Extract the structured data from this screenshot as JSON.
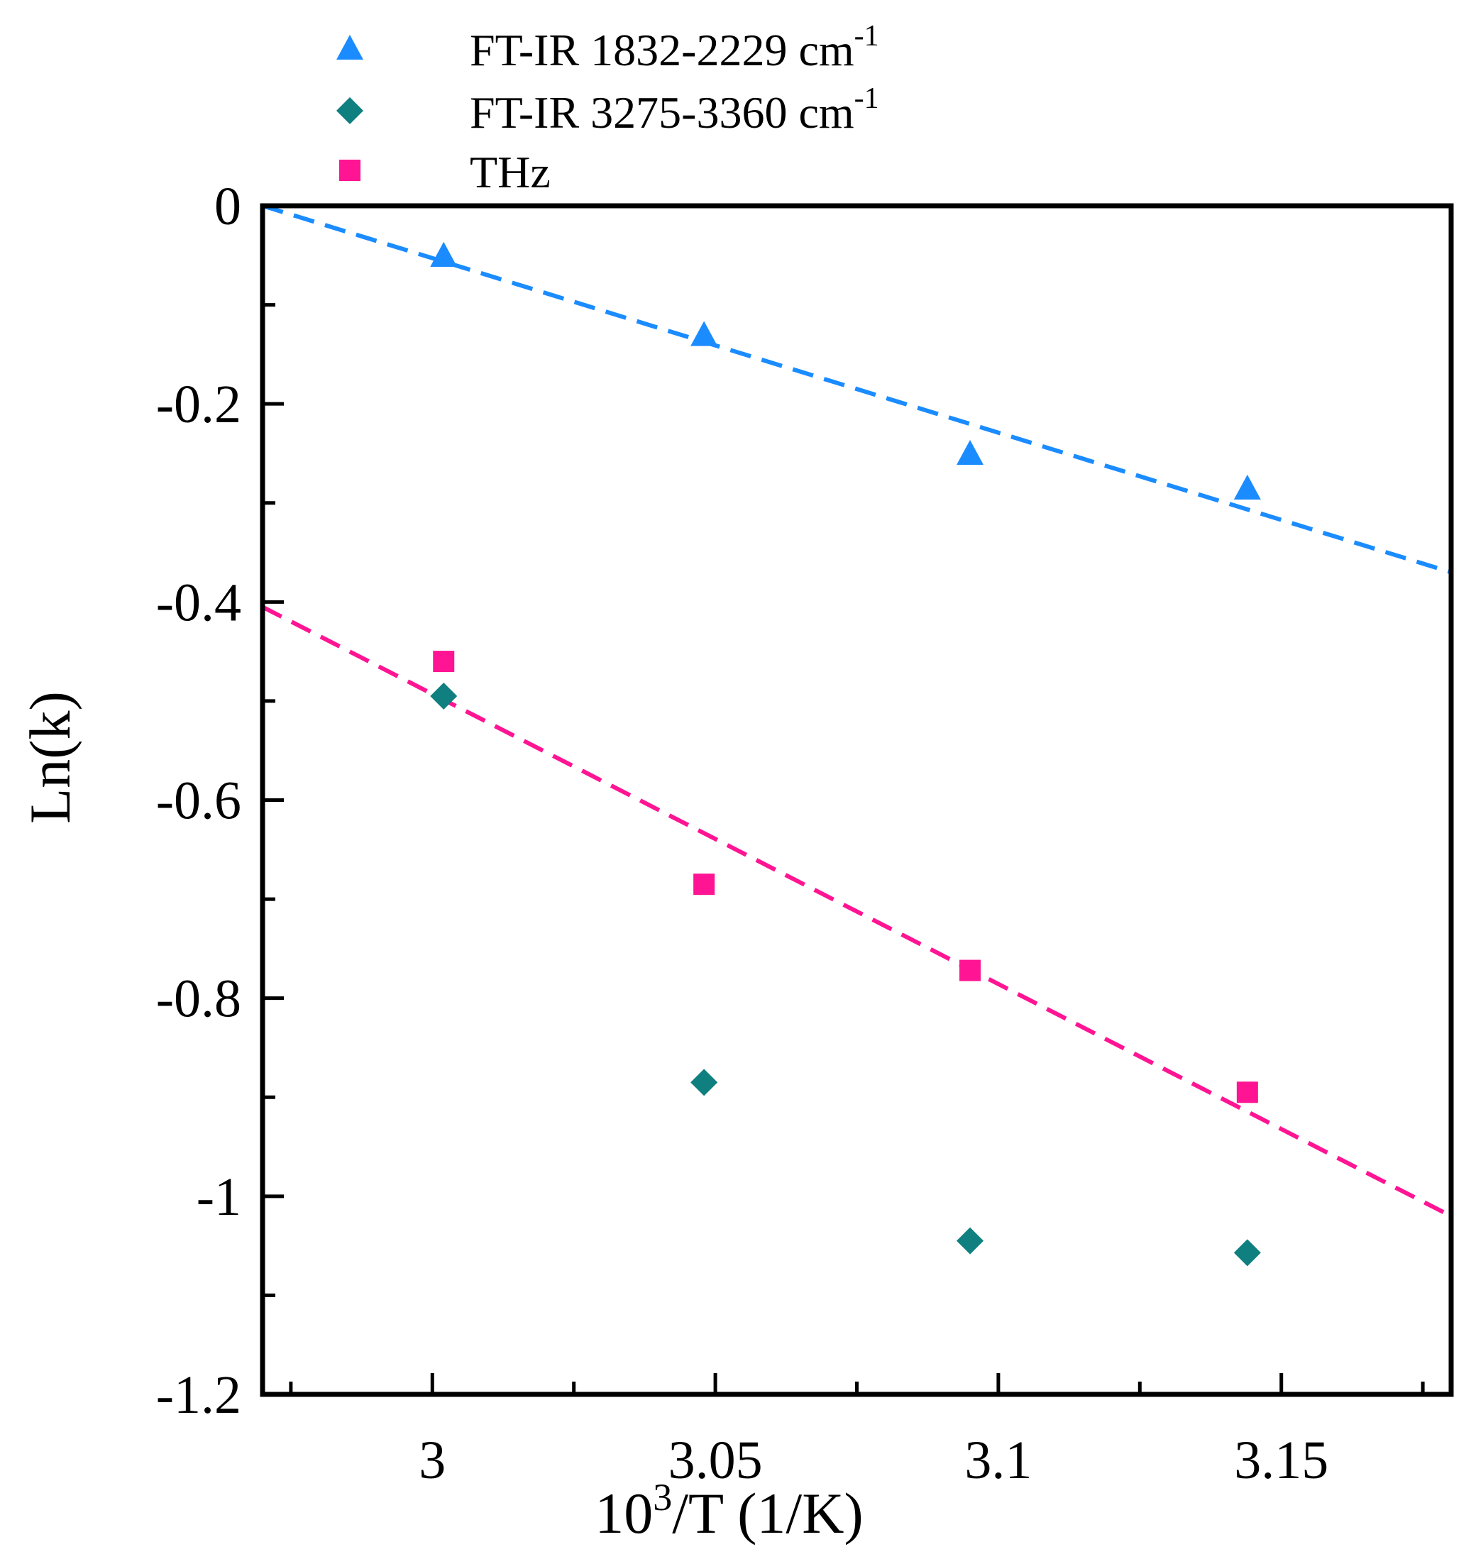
{
  "chart_data": {
    "type": "scatter",
    "xlabel": {
      "base": "10",
      "sup": "3",
      "rest": "/T (1/K)"
    },
    "ylabel": "Ln(k)",
    "xlim": [
      2.97,
      3.18
    ],
    "ylim": [
      -1.2,
      0
    ],
    "x_ticks": [
      {
        "value": 3.0,
        "label": "3"
      },
      {
        "value": 3.05,
        "label": "3.05"
      },
      {
        "value": 3.1,
        "label": "3.1"
      },
      {
        "value": 3.15,
        "label": "3.15"
      }
    ],
    "x_minor_ticks": [
      2.975,
      3.025,
      3.075,
      3.125,
      3.175
    ],
    "y_ticks": [
      {
        "value": 0,
        "label": "0"
      },
      {
        "value": -0.2,
        "label": "-0.2"
      },
      {
        "value": -0.4,
        "label": "-0.4"
      },
      {
        "value": -0.6,
        "label": "-0.6"
      },
      {
        "value": -0.8,
        "label": "-0.8"
      },
      {
        "value": -1.0,
        "label": "-1"
      },
      {
        "value": -1.2,
        "label": "-1.2"
      }
    ],
    "y_minor_ticks": [
      -0.1,
      -0.3,
      -0.5,
      -0.7,
      -0.9,
      -1.1
    ],
    "series": [
      {
        "name": "FT-IR 1832-2229 cm",
        "name_sup": "-1",
        "marker": "triangle",
        "color": "#1a8cff",
        "points": [
          [
            3.002,
            -0.05
          ],
          [
            3.048,
            -0.13
          ],
          [
            3.095,
            -0.25
          ],
          [
            3.144,
            -0.285
          ]
        ],
        "fit": [
          [
            2.97,
            0.0
          ],
          [
            3.18,
            -0.37
          ]
        ]
      },
      {
        "name": "FT-IR 3275-3360 cm",
        "name_sup": "-1",
        "marker": "diamond",
        "color": "#0f7f7f",
        "points": [
          [
            3.002,
            -0.495
          ],
          [
            3.048,
            -0.885
          ],
          [
            3.095,
            -1.045
          ],
          [
            3.144,
            -1.057
          ]
        ],
        "fit": null
      },
      {
        "name": "THz",
        "name_sup": "",
        "marker": "square",
        "color": "#ff1493",
        "points": [
          [
            3.002,
            -0.46
          ],
          [
            3.048,
            -0.685
          ],
          [
            3.095,
            -0.772
          ],
          [
            3.144,
            -0.895
          ]
        ],
        "fit": [
          [
            2.97,
            -0.405
          ],
          [
            3.18,
            -1.02
          ]
        ]
      }
    ]
  }
}
